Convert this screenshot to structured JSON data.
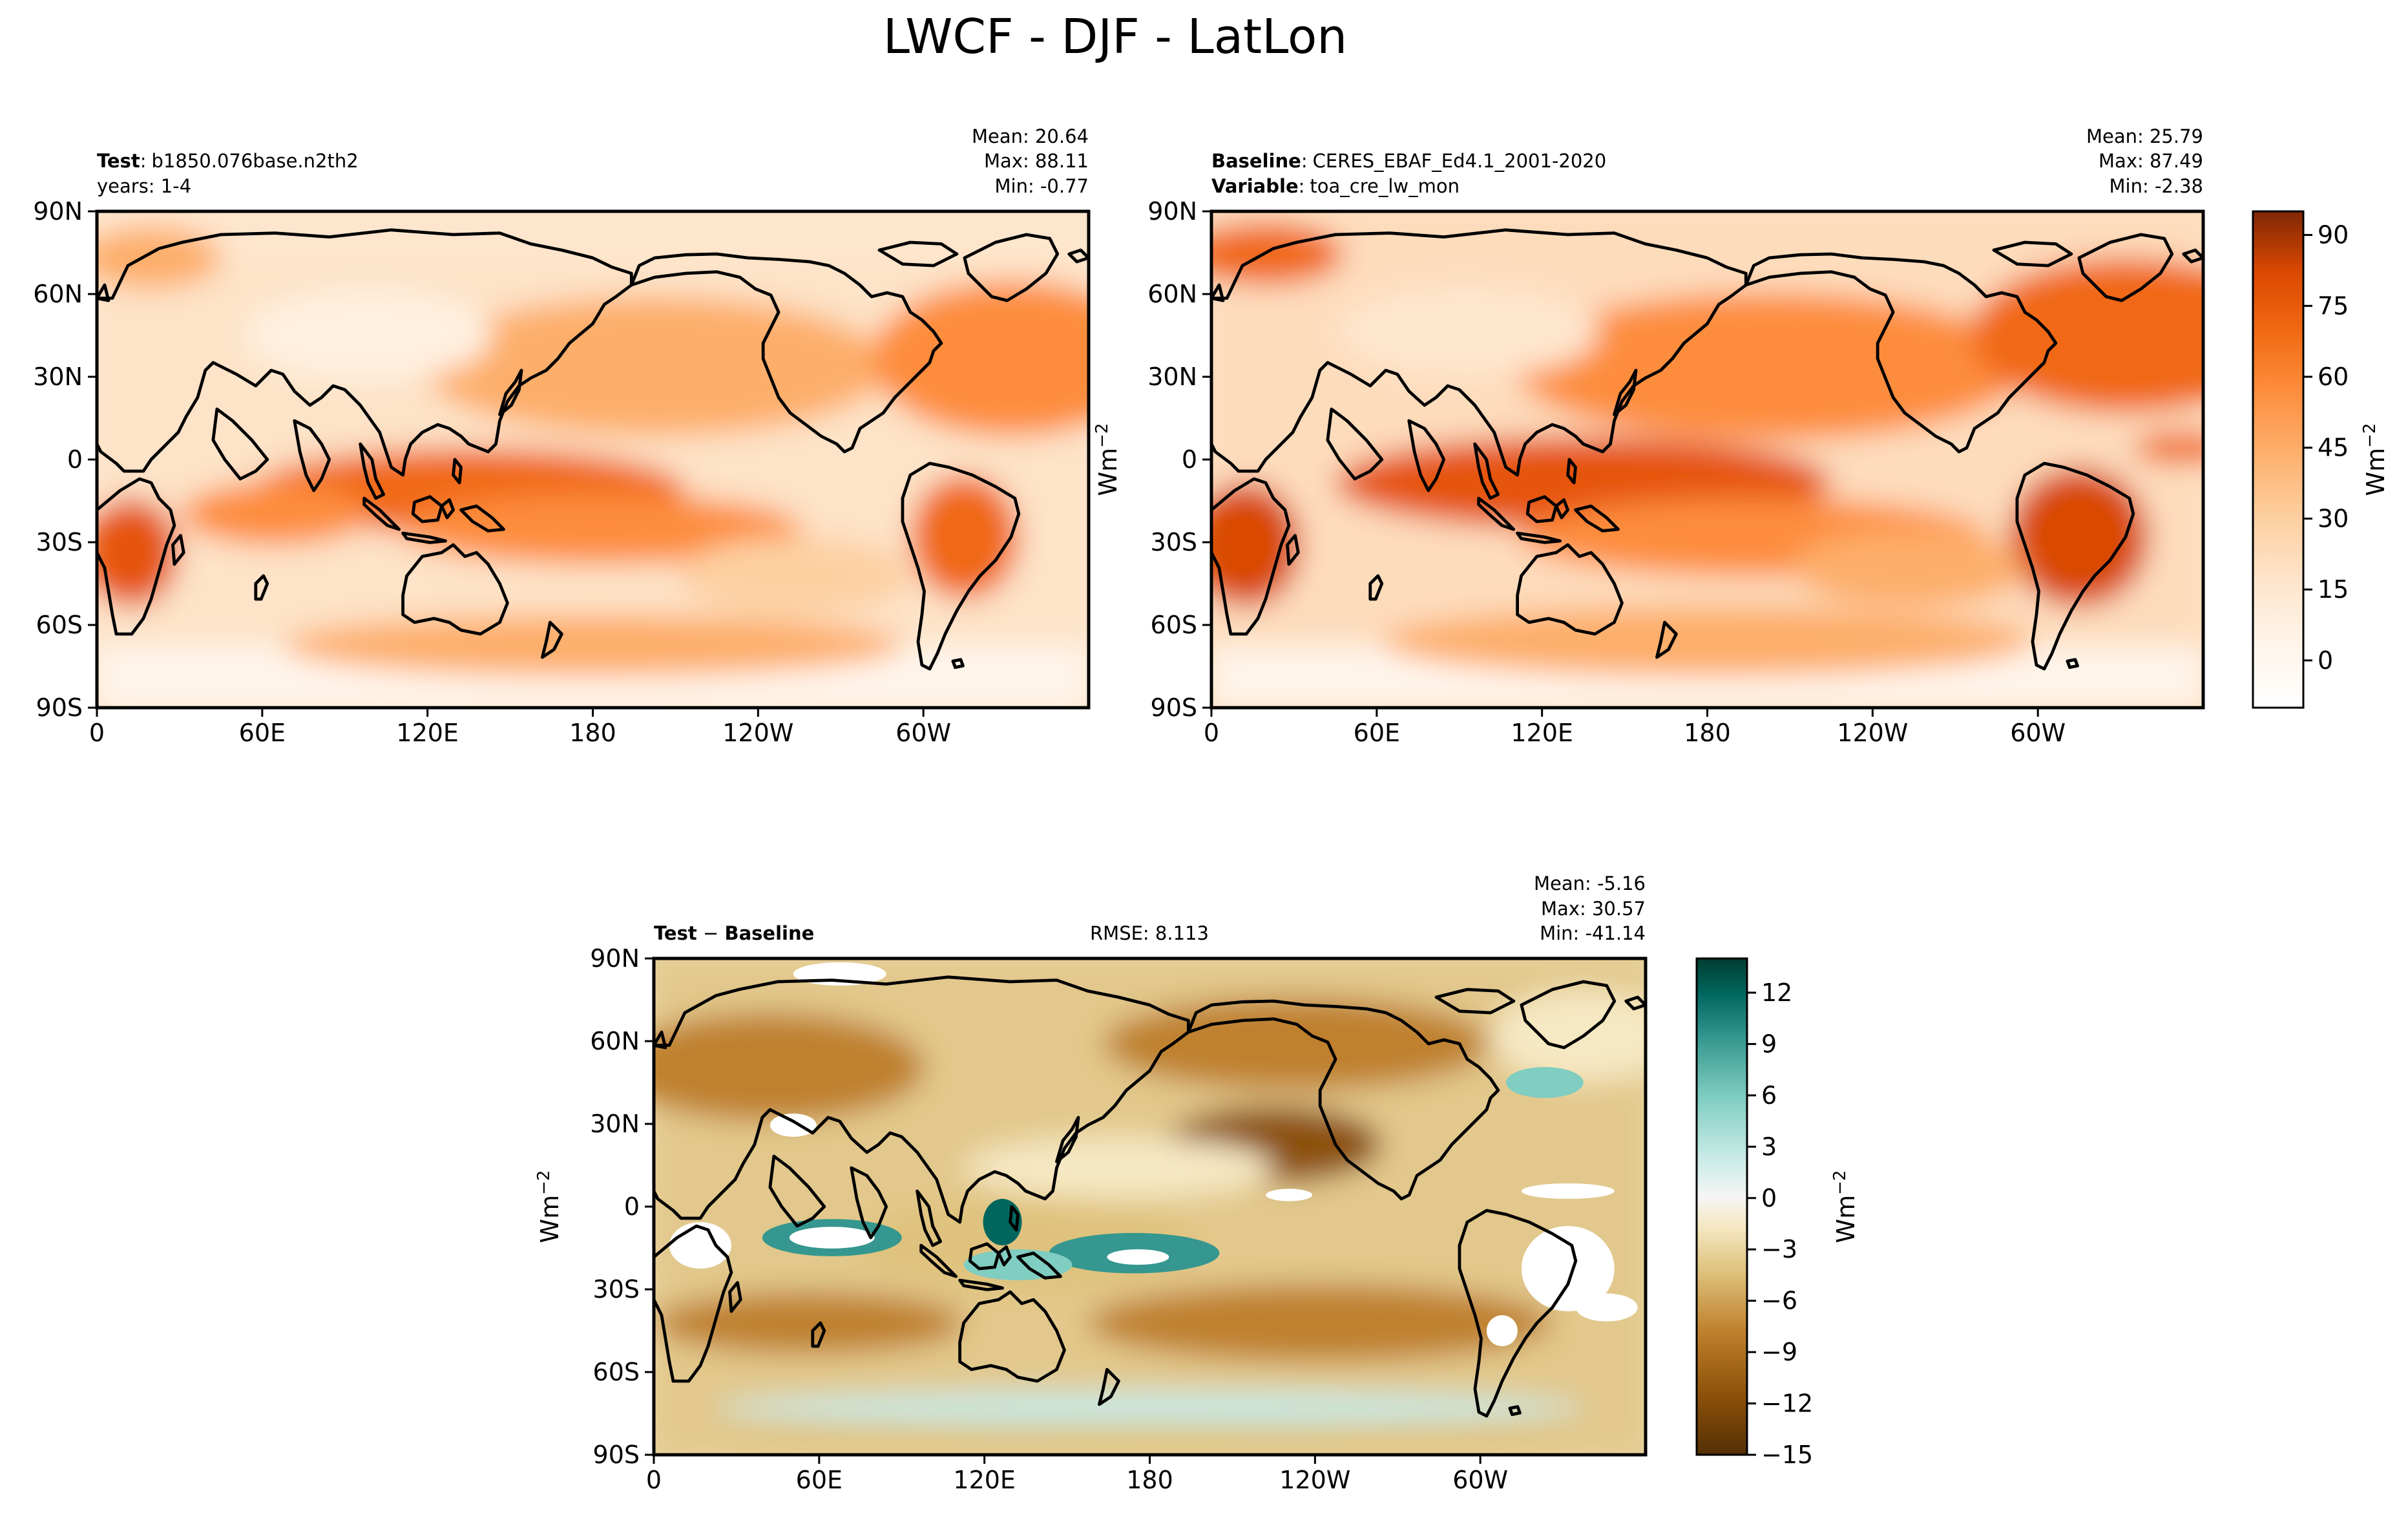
{
  "figure": {
    "title": "LWCF - DJF - LatLon"
  },
  "colors": {
    "oranges": [
      "#fff5eb",
      "#fee6ce",
      "#fdd0a2",
      "#fdae6b",
      "#fd8d3c",
      "#f16913",
      "#d94801",
      "#a63603",
      "#7f2704"
    ],
    "brbg": [
      "#543005",
      "#8c510a",
      "#bf812d",
      "#dfc27d",
      "#f6e8c3",
      "#f5f5f5",
      "#c7eae5",
      "#80cdc1",
      "#35978f",
      "#01665e",
      "#003c30"
    ],
    "land_outline": "#000000"
  },
  "chart_data": [
    {
      "type": "heatmap",
      "panel": "test",
      "label_bold": "Test",
      "label_value": "b1850.076base.n2th2",
      "line2": "years: 1-4",
      "stats": {
        "mean": "Mean: 20.64",
        "max": "Max: 88.11",
        "min": "Min: -0.77"
      },
      "xticks": [
        "0",
        "60E",
        "120E",
        "180",
        "120W",
        "60W"
      ],
      "yticks": [
        "90N",
        "60N",
        "30N",
        "0",
        "30S",
        "60S",
        "90S"
      ],
      "xlim": [
        0,
        360
      ],
      "ylim": [
        -90,
        90
      ],
      "colormap": "Oranges",
      "colorbar": {
        "shown": false
      }
    },
    {
      "type": "heatmap",
      "panel": "baseline",
      "label_bold": "Baseline",
      "label_value": "CERES_EBAF_Ed4.1_2001-2020",
      "line2_bold": "Variable",
      "line2_value": "toa_cre_lw_mon",
      "stats": {
        "mean": "Mean: 25.79",
        "max": "Max: 87.49",
        "min": "Min: -2.38"
      },
      "xticks": [
        "0",
        "60E",
        "120E",
        "180",
        "120W",
        "60W"
      ],
      "yticks": [
        "90N",
        "60N",
        "30N",
        "0",
        "30S",
        "60S",
        "90S"
      ],
      "xlim": [
        0,
        360
      ],
      "ylim": [
        -90,
        90
      ],
      "colormap": "Oranges",
      "colorbar": {
        "label": "Wm",
        "label_sup": "−2",
        "ticks": [
          "90",
          "75",
          "60",
          "45",
          "30",
          "15",
          "0"
        ],
        "tick_values": [
          90,
          75,
          60,
          45,
          30,
          15,
          0
        ],
        "range": [
          -10,
          95
        ]
      }
    },
    {
      "type": "heatmap",
      "panel": "difference",
      "label_bold_a": "Test",
      "label_sep": " − ",
      "label_bold_b": "Baseline",
      "rmse": "RMSE: 8.113",
      "stats": {
        "mean": "Mean: -5.16",
        "max": "Max: 30.57",
        "min": "Min: -41.14"
      },
      "xticks": [
        "0",
        "60E",
        "120E",
        "180",
        "120W",
        "60W"
      ],
      "yticks": [
        "90N",
        "60N",
        "30N",
        "0",
        "30S",
        "60S",
        "90S"
      ],
      "xlim": [
        0,
        360
      ],
      "ylim": [
        -90,
        90
      ],
      "colormap": "BrBG",
      "colorbar": {
        "label": "Wm",
        "label_sup": "−2",
        "ticks": [
          "12",
          "9",
          "6",
          "3",
          "0",
          "−3",
          "−6",
          "−9",
          "−12",
          "−15"
        ],
        "tick_values": [
          12,
          9,
          6,
          3,
          0,
          -3,
          -6,
          -9,
          -12,
          -15
        ],
        "range": [
          -15,
          14
        ]
      }
    }
  ],
  "left_axis_label": {
    "text": "Wm",
    "sup": "−2"
  }
}
